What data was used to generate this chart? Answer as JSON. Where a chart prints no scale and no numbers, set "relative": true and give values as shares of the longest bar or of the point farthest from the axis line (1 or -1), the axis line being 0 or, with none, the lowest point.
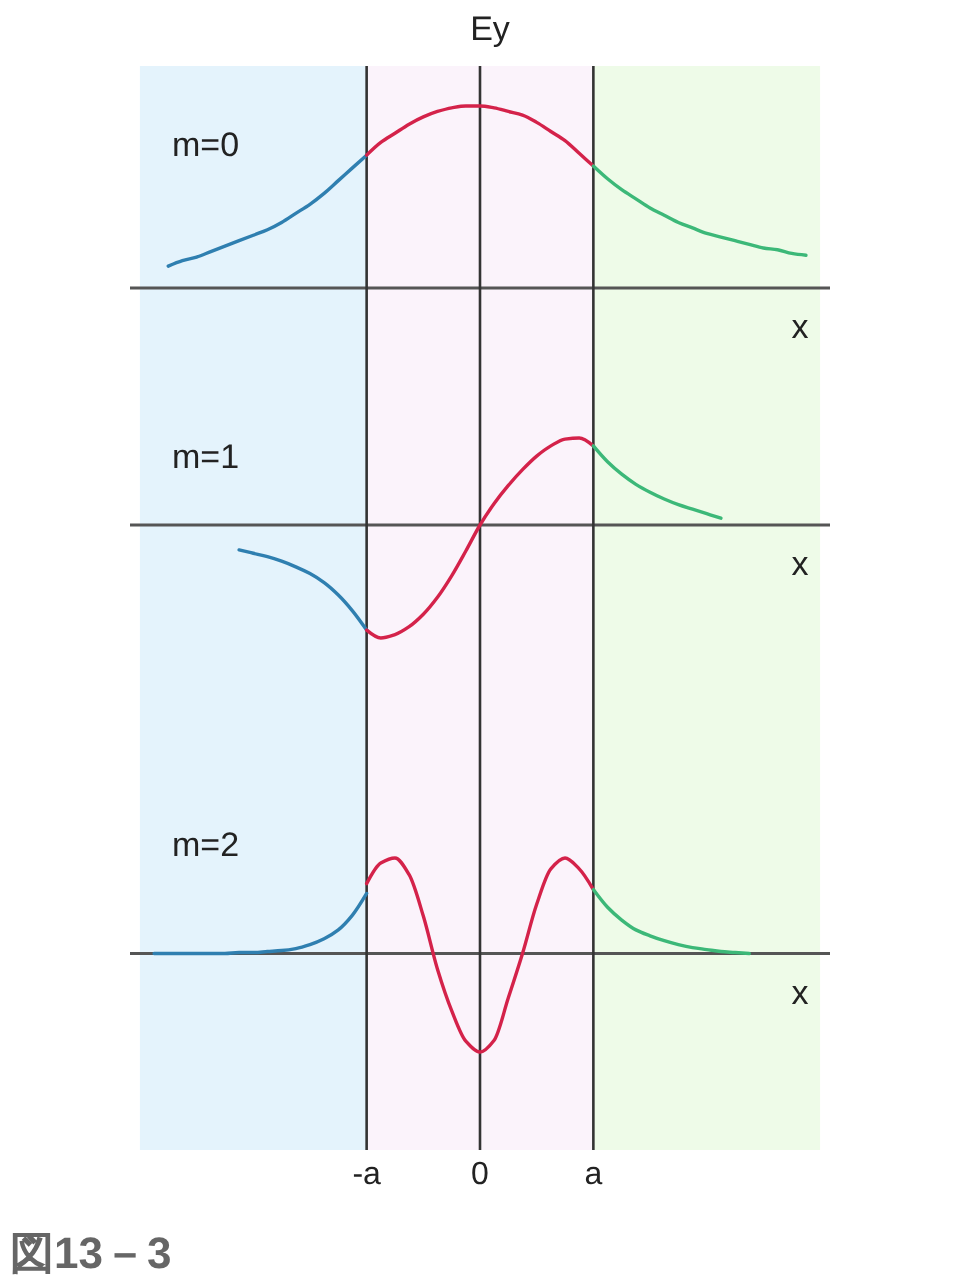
{
  "chart_data": [
    {
      "type": "line",
      "title": "m=0",
      "ylabel": "Ey",
      "xlabel": "x",
      "relative": true,
      "tick_labels": false,
      "categories": [
        null,
        null,
        null,
        null,
        null,
        null,
        null,
        null,
        null,
        null,
        null,
        null,
        null,
        null,
        null,
        null,
        "-a",
        null,
        null,
        null,
        null,
        null,
        null,
        null,
        "0",
        null,
        null,
        null,
        null,
        null,
        null,
        null,
        "a",
        null,
        null,
        null,
        null,
        null,
        null,
        null,
        null,
        null,
        null,
        null,
        null,
        null,
        null,
        null,
        null
      ],
      "bands": [
        {
          "axis": "x",
          "from": "-a",
          "to": "a",
          "color": "#fbf3fb"
        }
      ],
      "ref_lines": [
        {
          "axis": "x",
          "value": "-a",
          "color": "#333333"
        },
        {
          "axis": "x",
          "value": "0",
          "color": "#333333"
        },
        {
          "axis": "x",
          "value": "a",
          "color": "#333333"
        }
      ],
      "series": [
        {
          "color": "#2f7fb0",
          "values": [
            null,
            null,
            0.12,
            0.15,
            0.17,
            0.2,
            0.23,
            0.26,
            0.29,
            0.32,
            0.36,
            0.41,
            0.46,
            0.52,
            0.59,
            0.66,
            0.73,
            null,
            null,
            null,
            null,
            null,
            null,
            null,
            null,
            null,
            null,
            null,
            null,
            null,
            null,
            null,
            null,
            null,
            null,
            null,
            null,
            null,
            null,
            null,
            null,
            null,
            null,
            null,
            null,
            null,
            null,
            null,
            null
          ]
        },
        {
          "color": "#d4224a",
          "values": [
            null,
            null,
            null,
            null,
            null,
            null,
            null,
            null,
            null,
            null,
            null,
            null,
            null,
            null,
            null,
            null,
            0.73,
            0.8,
            0.85,
            0.9,
            0.94,
            0.97,
            0.99,
            1,
            1,
            0.99,
            0.97,
            0.95,
            0.91,
            0.86,
            0.81,
            0.74,
            0.67,
            null,
            null,
            null,
            null,
            null,
            null,
            null,
            null,
            null,
            null,
            null,
            null,
            null,
            null,
            null,
            null
          ]
        },
        {
          "color": "#3cb878",
          "values": [
            null,
            null,
            null,
            null,
            null,
            null,
            null,
            null,
            null,
            null,
            null,
            null,
            null,
            null,
            null,
            null,
            null,
            null,
            null,
            null,
            null,
            null,
            null,
            null,
            null,
            null,
            null,
            null,
            null,
            null,
            null,
            null,
            0.67,
            0.6,
            0.54,
            0.49,
            0.44,
            0.4,
            0.36,
            0.33,
            0.3,
            0.28,
            0.26,
            0.24,
            0.22,
            0.21,
            0.19,
            0.18,
            null
          ]
        }
      ]
    },
    {
      "type": "line",
      "title": "m=1",
      "xlabel": "x",
      "relative": true,
      "tick_labels": false,
      "categories": [
        null,
        null,
        null,
        null,
        null,
        null,
        null,
        null,
        null,
        null,
        null,
        null,
        null,
        null,
        null,
        null,
        "-a",
        null,
        null,
        null,
        null,
        null,
        null,
        null,
        "0",
        null,
        null,
        null,
        null,
        null,
        null,
        null,
        "a",
        null,
        null,
        null,
        null,
        null,
        null,
        null,
        null,
        null,
        null,
        null,
        null,
        null,
        null,
        null,
        null
      ],
      "bands": [
        {
          "axis": "x",
          "from": "-a",
          "to": "a",
          "color": "#fbf3fb"
        }
      ],
      "ref_lines": [
        {
          "axis": "x",
          "value": "-a",
          "color": "#333333"
        },
        {
          "axis": "x",
          "value": "0",
          "color": "#333333"
        },
        {
          "axis": "x",
          "value": "a",
          "color": "#333333"
        }
      ],
      "series": [
        {
          "color": "#2f7fb0",
          "values": [
            null,
            null,
            null,
            null,
            null,
            null,
            null,
            -0.22,
            -0.25,
            -0.28,
            -0.32,
            -0.37,
            -0.43,
            -0.51,
            -0.62,
            -0.76,
            -0.93,
            null,
            null,
            null,
            null,
            null,
            null,
            null,
            null,
            null,
            null,
            null,
            null,
            null,
            null,
            null,
            null,
            null,
            null,
            null,
            null,
            null,
            null,
            null,
            null,
            null,
            null,
            null,
            null,
            null,
            null,
            null,
            null
          ]
        },
        {
          "color": "#d4224a",
          "values": [
            null,
            null,
            null,
            null,
            null,
            null,
            null,
            null,
            null,
            null,
            null,
            null,
            null,
            null,
            null,
            null,
            -0.93,
            -1,
            -0.97,
            -0.9,
            -0.79,
            -0.64,
            -0.45,
            -0.23,
            0,
            0.19,
            0.35,
            0.49,
            0.61,
            0.7,
            0.76,
            0.77,
            0.7,
            null,
            null,
            null,
            null,
            null,
            null,
            null,
            null,
            null,
            null,
            null,
            null,
            null,
            null,
            null,
            null
          ]
        },
        {
          "color": "#3cb878",
          "values": [
            null,
            null,
            null,
            null,
            null,
            null,
            null,
            null,
            null,
            null,
            null,
            null,
            null,
            null,
            null,
            null,
            null,
            null,
            null,
            null,
            null,
            null,
            null,
            null,
            null,
            null,
            null,
            null,
            null,
            null,
            null,
            null,
            0.7,
            0.56,
            0.45,
            0.36,
            0.29,
            0.23,
            0.18,
            0.14,
            0.1,
            0.06,
            null,
            null,
            null,
            null,
            null,
            null,
            null
          ]
        }
      ]
    },
    {
      "type": "line",
      "title": "m=2",
      "xlabel": "x",
      "relative": true,
      "tick_labels": "x",
      "categories": [
        null,
        null,
        null,
        null,
        null,
        null,
        null,
        null,
        null,
        null,
        null,
        null,
        null,
        null,
        null,
        null,
        "-a",
        null,
        null,
        null,
        null,
        null,
        null,
        null,
        "0",
        null,
        null,
        null,
        null,
        null,
        null,
        null,
        "a",
        null,
        null,
        null,
        null,
        null,
        null,
        null,
        null,
        null,
        null,
        null,
        null,
        null,
        null,
        null,
        null
      ],
      "bands": [
        {
          "axis": "x",
          "from": "-a",
          "to": "a",
          "color": "#fbf3fb"
        }
      ],
      "ref_lines": [
        {
          "axis": "x",
          "value": "-a",
          "color": "#333333"
        },
        {
          "axis": "x",
          "value": "0",
          "color": "#333333"
        },
        {
          "axis": "x",
          "value": "a",
          "color": "#333333"
        }
      ],
      "series": [
        {
          "color": "#2f7fb0",
          "values": [
            null,
            0,
            0,
            0,
            0,
            0,
            0,
            0.01,
            0.01,
            0.02,
            0.03,
            0.05,
            0.09,
            0.15,
            0.24,
            0.39,
            0.61,
            null,
            null,
            null,
            null,
            null,
            null,
            null,
            null,
            null,
            null,
            null,
            null,
            null,
            null,
            null,
            null,
            null,
            null,
            null,
            null,
            null,
            null,
            null,
            null,
            null,
            null,
            null,
            null,
            null,
            null,
            null,
            null
          ]
        },
        {
          "color": "#d4224a",
          "values": [
            null,
            null,
            null,
            null,
            null,
            null,
            null,
            null,
            null,
            null,
            null,
            null,
            null,
            null,
            null,
            null,
            0.71,
            0.92,
            0.97,
            0.8,
            0.38,
            -0.16,
            -0.58,
            -0.89,
            -1,
            -0.88,
            -0.45,
            0,
            0.5,
            0.86,
            0.97,
            0.86,
            0.65,
            null,
            null,
            null,
            null,
            null,
            null,
            null,
            null,
            null,
            null,
            null,
            null,
            null,
            null,
            null,
            null
          ]
        },
        {
          "color": "#3cb878",
          "values": [
            null,
            null,
            null,
            null,
            null,
            null,
            null,
            null,
            null,
            null,
            null,
            null,
            null,
            null,
            null,
            null,
            null,
            null,
            null,
            null,
            null,
            null,
            null,
            null,
            null,
            null,
            null,
            null,
            null,
            null,
            null,
            null,
            0.65,
            0.47,
            0.34,
            0.24,
            0.18,
            0.13,
            0.09,
            0.06,
            0.04,
            0.02,
            0.01,
            0,
            null,
            null,
            null,
            null,
            null
          ]
        }
      ],
      "annotations": [
        "図13－3"
      ]
    }
  ]
}
